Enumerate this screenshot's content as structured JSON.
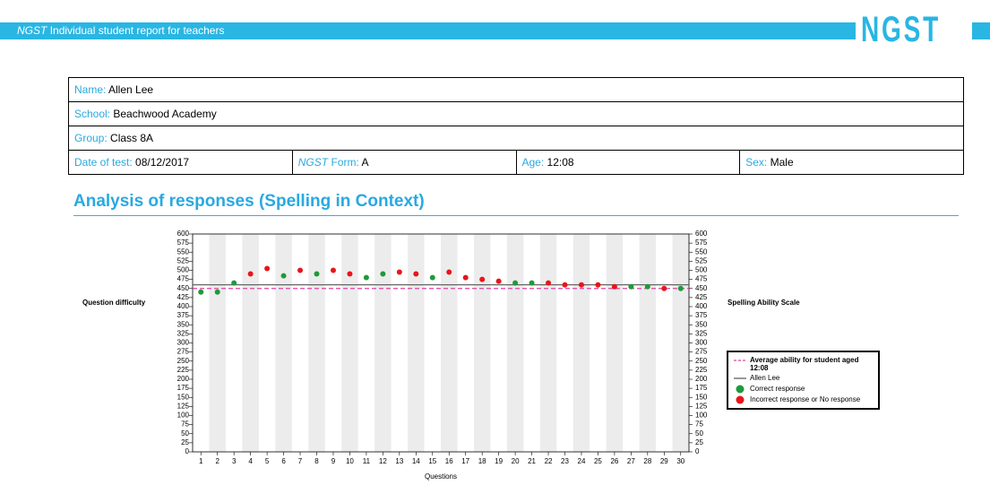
{
  "header": {
    "brand": "NGST",
    "title": "Individual student report for teachers",
    "logo": "NGST"
  },
  "student": {
    "name": {
      "label": "Name:",
      "value": "Allen Lee"
    },
    "school": {
      "label": "School:",
      "value": "Beachwood Academy"
    },
    "group": {
      "label": "Group:",
      "value": "Class 8A"
    },
    "date": {
      "label": "Date of test:",
      "value": "08/12/2017"
    },
    "form": {
      "brand": "NGST",
      "label": "Form:",
      "value": "A"
    },
    "age": {
      "label": "Age:",
      "value": "12:08"
    },
    "sex": {
      "label": "Sex:",
      "value": "Male"
    }
  },
  "section_title": "Analysis of responses (Spelling in Context)",
  "chart_data": {
    "type": "scatter",
    "ylabel": "Question difficulty",
    "y2label": "Spelling Ability Scale",
    "xlabel": "Questions",
    "xlim": [
      0.5,
      30.5
    ],
    "xticks": [
      1,
      2,
      3,
      4,
      5,
      6,
      7,
      8,
      9,
      10,
      11,
      12,
      13,
      14,
      15,
      16,
      17,
      18,
      19,
      20,
      21,
      22,
      23,
      24,
      25,
      26,
      27,
      28,
      29,
      30
    ],
    "ylim": [
      0,
      600
    ],
    "yticks": [
      0,
      25,
      50,
      75,
      100,
      125,
      150,
      175,
      200,
      225,
      250,
      275,
      300,
      325,
      350,
      375,
      400,
      425,
      450,
      475,
      500,
      525,
      550,
      575,
      600
    ],
    "y2lim": [
      0,
      600
    ],
    "y2ticks": [
      0,
      25,
      50,
      75,
      100,
      125,
      150,
      175,
      200,
      225,
      250,
      275,
      300,
      325,
      350,
      375,
      400,
      425,
      450,
      475,
      500,
      525,
      550,
      575,
      600
    ],
    "reference_lines": [
      {
        "name": "Average ability for student aged 12:08",
        "value": 450,
        "color": "#e040a0",
        "style": "dashed"
      },
      {
        "name": "Allen Lee",
        "value": 460,
        "color": "#555555",
        "style": "solid"
      }
    ],
    "series": [
      {
        "name": "Correct response",
        "color": "#1e9a3a",
        "x": [
          1,
          2,
          3,
          6,
          8,
          11,
          12,
          15,
          20,
          21,
          27,
          28,
          30
        ],
        "values": [
          440,
          440,
          465,
          485,
          490,
          480,
          490,
          480,
          465,
          465,
          455,
          455,
          450
        ]
      },
      {
        "name": "Incorrect response or No response",
        "color": "#e8151b",
        "x": [
          4,
          5,
          7,
          9,
          10,
          13,
          14,
          16,
          17,
          18,
          19,
          22,
          23,
          24,
          25,
          26,
          29
        ],
        "values": [
          490,
          505,
          500,
          500,
          490,
          495,
          490,
          495,
          480,
          475,
          470,
          465,
          460,
          460,
          460,
          455,
          450
        ]
      }
    ],
    "legend": "right"
  }
}
